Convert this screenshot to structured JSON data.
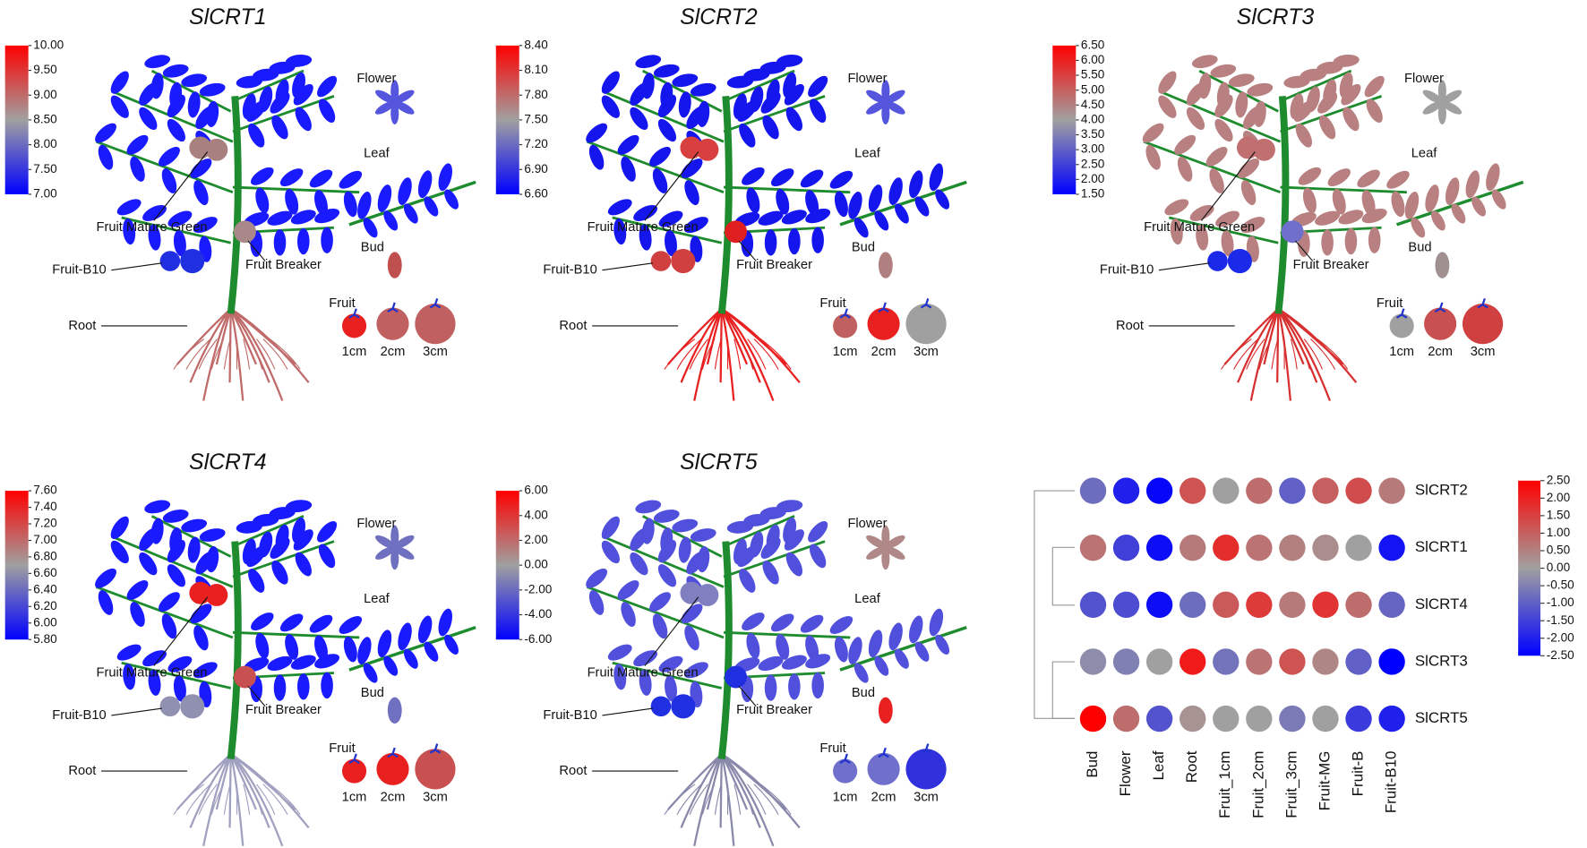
{
  "panels": [
    {
      "title": "SlCRT1",
      "range": [
        7,
        10
      ],
      "ticks": [
        {
          "value": 10,
          "label": "10.00"
        },
        {
          "value": 9.5,
          "label": "9.50"
        },
        {
          "value": 9,
          "label": "9.00"
        },
        {
          "value": 8.5,
          "label": "8.50"
        },
        {
          "value": 8,
          "label": "8.00"
        },
        {
          "value": 7.5,
          "label": "7.50"
        },
        {
          "value": 7,
          "label": "7.00"
        }
      ],
      "labels": [
        "Flower",
        "Leaf",
        "Bud",
        "Fruit",
        "1cm",
        "2cm",
        "3cm",
        "Fruit Mature Green",
        "Fruit Breaker",
        "Fruit-B10",
        "Root"
      ],
      "colors": {
        "leaf": "#1a1aff",
        "root": "#c06a6a",
        "flower": "#5555dd",
        "bud": "#c05050",
        "mg": "#a88080",
        "breaker": "#a88888",
        "b10": "#2030e0",
        "f1": "#e82020",
        "f2": "#c06060",
        "f3": "#c06060"
      }
    },
    {
      "title": "SlCRT2",
      "range": [
        6.6,
        8.4
      ],
      "ticks": [
        {
          "value": 8.4,
          "label": "8.40"
        },
        {
          "value": 8.1,
          "label": "8.10"
        },
        {
          "value": 7.8,
          "label": "7.80"
        },
        {
          "value": 7.5,
          "label": "7.50"
        },
        {
          "value": 7.2,
          "label": "7.20"
        },
        {
          "value": 6.9,
          "label": "6.90"
        },
        {
          "value": 6.6,
          "label": "6.60"
        }
      ],
      "labels": [
        "Flower",
        "Leaf",
        "Bud",
        "Fruit",
        "1cm",
        "2cm",
        "3cm",
        "Fruit Mature Green",
        "Fruit Breaker",
        "Fruit-B10",
        "Root"
      ],
      "colors": {
        "leaf": "#1515ee",
        "root": "#e82020",
        "flower": "#5555dd",
        "bud": "#b08080",
        "mg": "#d84040",
        "breaker": "#e02020",
        "b10": "#d04040",
        "f1": "#c06060",
        "f2": "#e82020",
        "f3": "#a0a0a0"
      }
    },
    {
      "title": "SlCRT3",
      "range": [
        1.5,
        6.5
      ],
      "ticks": [
        {
          "value": 6.5,
          "label": "6.50"
        },
        {
          "value": 6,
          "label": "6.00"
        },
        {
          "value": 5.5,
          "label": "5.50"
        },
        {
          "value": 5,
          "label": "5.00"
        },
        {
          "value": 4.5,
          "label": "4.50"
        },
        {
          "value": 4,
          "label": "4.00"
        },
        {
          "value": 3.5,
          "label": "3.50"
        },
        {
          "value": 3,
          "label": "3.00"
        },
        {
          "value": 2.5,
          "label": "2.50"
        },
        {
          "value": 2,
          "label": "2.00"
        },
        {
          "value": 1.5,
          "label": "1.50"
        }
      ],
      "labels": [
        "Flower",
        "Leaf",
        "Bud",
        "Fruit",
        "1cm",
        "2cm",
        "3cm",
        "Fruit Mature Green",
        "Fruit Breaker",
        "Fruit-B10",
        "Root"
      ],
      "colors": {
        "leaf": "#b88080",
        "root": "#d83030",
        "flower": "#a0a0a0",
        "bud": "#a09090",
        "mg": "#c07070",
        "breaker": "#7070cc",
        "b10": "#1a2ae8",
        "f1": "#a0a0a0",
        "f2": "#c85050",
        "f3": "#d04040"
      }
    },
    {
      "title": "SlCRT4",
      "range": [
        5.8,
        7.6
      ],
      "ticks": [
        {
          "value": 7.6,
          "label": "7.60"
        },
        {
          "value": 7.4,
          "label": "7.40"
        },
        {
          "value": 7.2,
          "label": "7.20"
        },
        {
          "value": 7,
          "label": "7.00"
        },
        {
          "value": 6.8,
          "label": "6.80"
        },
        {
          "value": 6.6,
          "label": "6.60"
        },
        {
          "value": 6.4,
          "label": "6.40"
        },
        {
          "value": 6.2,
          "label": "6.20"
        },
        {
          "value": 6,
          "label": "6.00"
        },
        {
          "value": 5.8,
          "label": "5.80"
        }
      ],
      "labels": [
        "Flower",
        "Leaf",
        "Bud",
        "Fruit",
        "1cm",
        "2cm",
        "3cm",
        "Fruit Mature Green",
        "Fruit Breaker",
        "Fruit-B10",
        "Root"
      ],
      "colors": {
        "leaf": "#1a1aff",
        "root": "#a0a0c0",
        "flower": "#7070c0",
        "bud": "#7070c0",
        "mg": "#e82020",
        "breaker": "#c85050",
        "b10": "#9090b0",
        "f1": "#e82020",
        "f2": "#e82020",
        "f3": "#c85050"
      }
    },
    {
      "title": "SlCRT5",
      "range": [
        -6,
        6
      ],
      "ticks": [
        {
          "value": 6,
          "label": "6.00"
        },
        {
          "value": 4,
          "label": "4.00"
        },
        {
          "value": 2,
          "label": "2.00"
        },
        {
          "value": 0,
          "label": "0.00"
        },
        {
          "value": -2,
          "label": "-2.00"
        },
        {
          "value": -4,
          "label": "-4.00"
        },
        {
          "value": -6,
          "label": "-6.00"
        }
      ],
      "labels": [
        "Flower",
        "Leaf",
        "Bud",
        "Fruit",
        "1cm",
        "2cm",
        "3cm",
        "Fruit Mature Green",
        "Fruit Breaker",
        "Fruit-B10",
        "Root"
      ],
      "colors": {
        "leaf": "#5050dd",
        "root": "#8888aa",
        "flower": "#b08888",
        "bud": "#e82020",
        "mg": "#8080c0",
        "breaker": "#2030e0",
        "b10": "#2030e0",
        "f1": "#7070cc",
        "f2": "#7070cc",
        "f3": "#3030dd"
      }
    }
  ],
  "heatmap": {
    "rows": [
      "SlCRT2",
      "SlCRT1",
      "SlCRT4",
      "SlCRT3",
      "SlCRT5"
    ],
    "columns": [
      "Bud",
      "Flower",
      "Leaf",
      "Root",
      "Fruit_1cm",
      "Fruit_2cm",
      "Fruit_3cm",
      "Fruit-MG",
      "Fruit-B",
      "Fruit-B10"
    ],
    "values": [
      [
        -0.8,
        -2.0,
        -2.4,
        1.2,
        0.0,
        0.8,
        -1.0,
        1.0,
        1.3,
        0.6
      ],
      [
        0.7,
        -1.5,
        -2.3,
        0.6,
        1.8,
        0.7,
        0.5,
        0.3,
        0.0,
        -2.2
      ],
      [
        -1.2,
        -1.3,
        -2.3,
        -0.8,
        1.1,
        1.6,
        0.6,
        1.7,
        0.8,
        -0.9
      ],
      [
        -0.3,
        -0.5,
        0.0,
        2.1,
        -0.7,
        0.7,
        1.2,
        0.4,
        -1.0,
        -2.5
      ],
      [
        2.5,
        0.8,
        -1.2,
        0.2,
        0.0,
        0.0,
        -0.6,
        0.0,
        -1.6,
        -2.0
      ]
    ],
    "range": [
      -2.5,
      2.5
    ],
    "ticks": [
      {
        "value": 2.5,
        "label": "2.50"
      },
      {
        "value": 2,
        "label": "2.00"
      },
      {
        "value": 1.5,
        "label": "1.50"
      },
      {
        "value": 1,
        "label": "1.00"
      },
      {
        "value": 0.5,
        "label": "0.50"
      },
      {
        "value": 0,
        "label": "0.00"
      },
      {
        "value": -0.5,
        "label": "-0.50"
      },
      {
        "value": -1,
        "label": "-1.00"
      },
      {
        "value": -1.5,
        "label": "-1.50"
      },
      {
        "value": -2,
        "label": "-2.00"
      },
      {
        "value": -2.5,
        "label": "-2.50"
      }
    ]
  }
}
